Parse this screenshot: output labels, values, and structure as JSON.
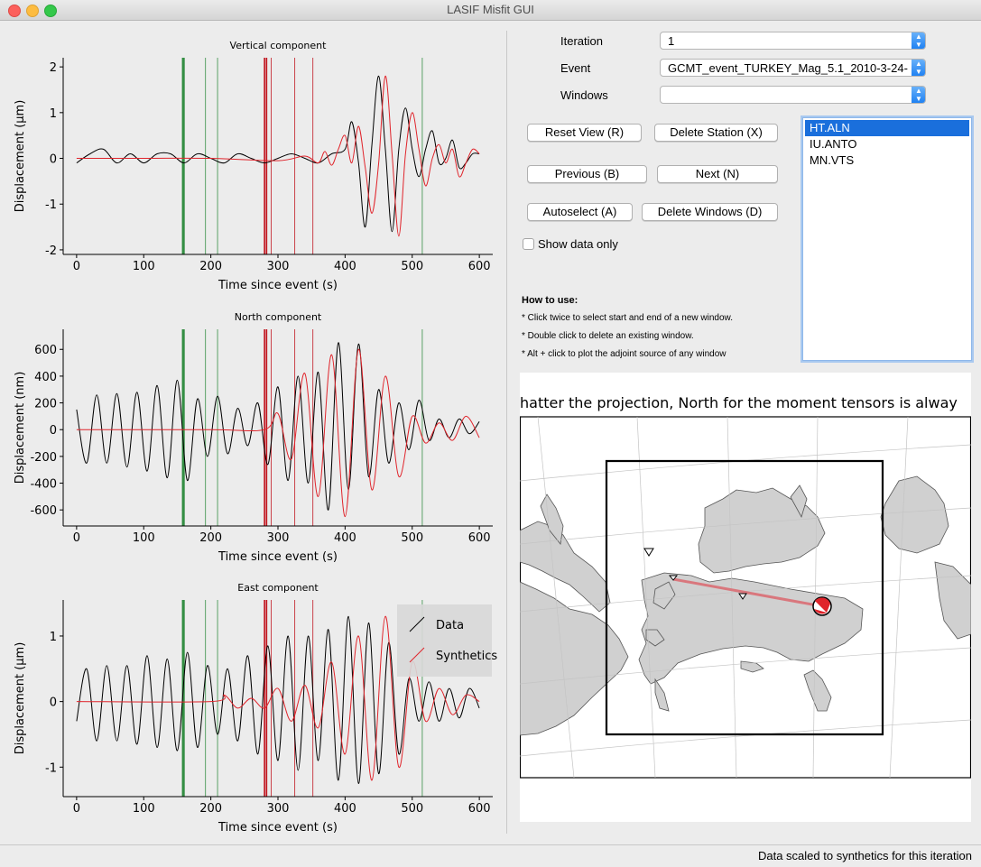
{
  "window": {
    "title": "LASIF Misfit GUI"
  },
  "controls": {
    "iteration_label": "Iteration",
    "iteration_value": "1",
    "event_label": "Event",
    "event_value": "GCMT_event_TURKEY_Mag_5.1_2010-3-24-",
    "windows_label": "Windows",
    "windows_value": ""
  },
  "buttons": {
    "reset_view": "Reset View (R)",
    "delete_station": "Delete Station (X)",
    "previous": "Previous (B)",
    "next": "Next (N)",
    "autoselect": "Autoselect (A)",
    "delete_windows": "Delete Windows (D)"
  },
  "show_data_only": {
    "label": "Show data only",
    "checked": false
  },
  "howto": {
    "title": "How to use:",
    "lines": [
      "* Click twice to select start and end of a new window.",
      "* Double click to delete an existing window.",
      "* Alt + click to plot the adjoint source of any window"
    ]
  },
  "stations": {
    "items": [
      "HT.ALN",
      "IU.ANTO",
      "MN.VTS"
    ],
    "selected": 0
  },
  "map": {
    "caption": "hatter the projection, North for the moment tensors is alway"
  },
  "status": {
    "text": "Data scaled to synthetics for this iteration"
  },
  "colors": {
    "data": "#000000",
    "synthetics": "#e0242b",
    "window_green": "#2e8b3e",
    "window_red": "#c0101a"
  },
  "chart_data": [
    {
      "type": "line",
      "title": "Vertical component",
      "xlabel": "Time since event (s)",
      "ylabel": "Displacement (μm)",
      "xlim": [
        -20,
        620
      ],
      "ylim": [
        -2.1,
        2.2
      ],
      "xticks": [
        0,
        100,
        200,
        300,
        400,
        500,
        600
      ],
      "yticks": [
        2,
        1,
        0,
        -1,
        -2
      ],
      "series": [
        {
          "name": "Data",
          "x": [
            0,
            20,
            40,
            60,
            80,
            100,
            120,
            140,
            160,
            180,
            200,
            220,
            240,
            260,
            280,
            300,
            320,
            340,
            360,
            380,
            400,
            410,
            420,
            430,
            440,
            450,
            460,
            470,
            480,
            490,
            500,
            510,
            520,
            530,
            540,
            550,
            560,
            570,
            580,
            590,
            600
          ],
          "y": [
            -0.1,
            0.1,
            0.2,
            -0.1,
            0.1,
            -0.1,
            0.1,
            0.1,
            -0.1,
            0.1,
            0.0,
            -0.1,
            0.1,
            0.0,
            -0.1,
            0.0,
            0.1,
            0.0,
            -0.1,
            0.1,
            0.2,
            0.8,
            -0.1,
            -1.5,
            0.3,
            1.8,
            0.2,
            -1.6,
            0.2,
            1.1,
            0.2,
            -0.4,
            0.2,
            0.6,
            -0.1,
            0.0,
            0.4,
            -0.2,
            -0.1,
            0.1,
            0.1
          ]
        },
        {
          "name": "Synthetics",
          "x": [
            0,
            100,
            200,
            300,
            340,
            360,
            370,
            380,
            390,
            400,
            410,
            420,
            430,
            440,
            450,
            460,
            470,
            480,
            490,
            500,
            510,
            520,
            530,
            540,
            550,
            560,
            570,
            580,
            590,
            600
          ],
          "y": [
            0.0,
            0.0,
            0.0,
            -0.05,
            0.05,
            -0.1,
            0.15,
            -0.15,
            0.2,
            0.5,
            -0.1,
            0.7,
            -0.2,
            -1.2,
            -0.1,
            1.8,
            0.1,
            -1.7,
            0.1,
            1.0,
            0.2,
            -0.6,
            0.0,
            0.3,
            -0.1,
            0.2,
            -0.4,
            -0.1,
            0.2,
            0.1
          ]
        }
      ],
      "windows": [
        {
          "color": "green",
          "x": [
            158,
            160,
            192,
            210,
            515
          ]
        },
        {
          "color": "red",
          "x": [
            280,
            283,
            290,
            325,
            352
          ]
        }
      ]
    },
    {
      "type": "line",
      "title": "North component",
      "xlabel": "Time since event (s)",
      "ylabel": "Displacement (nm)",
      "xlim": [
        -20,
        620
      ],
      "ylim": [
        -720,
        750
      ],
      "xticks": [
        0,
        100,
        200,
        300,
        400,
        500,
        600
      ],
      "yticks": [
        600,
        400,
        200,
        0,
        -200,
        -400,
        -600
      ],
      "series": [
        {
          "name": "Data",
          "x": [
            0,
            15,
            30,
            45,
            60,
            75,
            90,
            105,
            120,
            135,
            150,
            165,
            180,
            195,
            210,
            225,
            240,
            255,
            270,
            285,
            300,
            315,
            330,
            345,
            360,
            375,
            390,
            405,
            420,
            435,
            450,
            465,
            480,
            495,
            510,
            525,
            540,
            555,
            570,
            585,
            600
          ],
          "y": [
            150,
            -250,
            260,
            -250,
            270,
            -280,
            280,
            -310,
            330,
            -360,
            370,
            -380,
            230,
            -200,
            250,
            -180,
            160,
            -120,
            200,
            -260,
            320,
            -380,
            400,
            -400,
            430,
            -600,
            650,
            -450,
            640,
            -350,
            300,
            -250,
            200,
            -150,
            220,
            -80,
            80,
            -60,
            80,
            -30,
            60
          ]
        },
        {
          "name": "Synthetics",
          "x": [
            0,
            200,
            280,
            300,
            320,
            340,
            360,
            380,
            400,
            420,
            440,
            460,
            480,
            500,
            520,
            540,
            560,
            580,
            600
          ],
          "y": [
            0,
            0,
            0,
            120,
            -220,
            420,
            -500,
            560,
            -650,
            600,
            -450,
            400,
            -350,
            100,
            -100,
            50,
            -80,
            100,
            -60
          ]
        }
      ],
      "windows": [
        {
          "color": "green",
          "x": [
            158,
            160,
            192,
            210,
            515
          ]
        },
        {
          "color": "red",
          "x": [
            280,
            283,
            290,
            325,
            352
          ]
        }
      ]
    },
    {
      "type": "line",
      "title": "East component",
      "xlabel": "Time since event (s)",
      "ylabel": "Displacement (μm)",
      "xlim": [
        -20,
        620
      ],
      "ylim": [
        -1.45,
        1.55
      ],
      "xticks": [
        0,
        100,
        200,
        300,
        400,
        500,
        600
      ],
      "yticks": [
        1,
        0,
        -1
      ],
      "series": [
        {
          "name": "Data",
          "x": [
            0,
            15,
            30,
            45,
            60,
            75,
            90,
            105,
            120,
            135,
            150,
            165,
            180,
            195,
            210,
            225,
            240,
            255,
            270,
            285,
            300,
            315,
            330,
            345,
            360,
            375,
            390,
            405,
            420,
            435,
            450,
            465,
            480,
            495,
            510,
            525,
            540,
            555,
            570,
            585,
            600
          ],
          "y": [
            -0.3,
            0.5,
            -0.6,
            0.55,
            -0.6,
            0.55,
            -0.65,
            0.7,
            -0.7,
            0.65,
            -0.75,
            0.75,
            -0.7,
            0.55,
            -0.5,
            0.5,
            -0.6,
            0.7,
            -0.8,
            0.85,
            -0.9,
            1.0,
            -1.05,
            1.0,
            -0.9,
            1.1,
            -1.2,
            1.3,
            -1.25,
            1.2,
            -1.1,
            0.9,
            -0.8,
            0.35,
            -0.3,
            0.3,
            -0.3,
            0.2,
            -0.25,
            0.2,
            -0.1
          ]
        },
        {
          "name": "Synthetics",
          "x": [
            0,
            200,
            220,
            240,
            260,
            280,
            300,
            320,
            340,
            360,
            380,
            400,
            420,
            440,
            460,
            480,
            500,
            520,
            540,
            560,
            580,
            600
          ],
          "y": [
            0.0,
            0.0,
            0.1,
            -0.1,
            0.05,
            -0.1,
            0.2,
            -0.3,
            0.25,
            -0.4,
            0.6,
            -0.8,
            1.0,
            -1.2,
            1.3,
            -1.0,
            0.6,
            -0.3,
            0.2,
            -0.2,
            0.1,
            0.0
          ]
        }
      ],
      "windows": [
        {
          "color": "green",
          "x": [
            158,
            160,
            192,
            210,
            515
          ]
        },
        {
          "color": "red",
          "x": [
            280,
            283,
            290,
            325,
            352
          ]
        }
      ],
      "legend": {
        "entries": [
          "Data",
          "Synthetics"
        ],
        "placement": "top-right"
      }
    }
  ]
}
